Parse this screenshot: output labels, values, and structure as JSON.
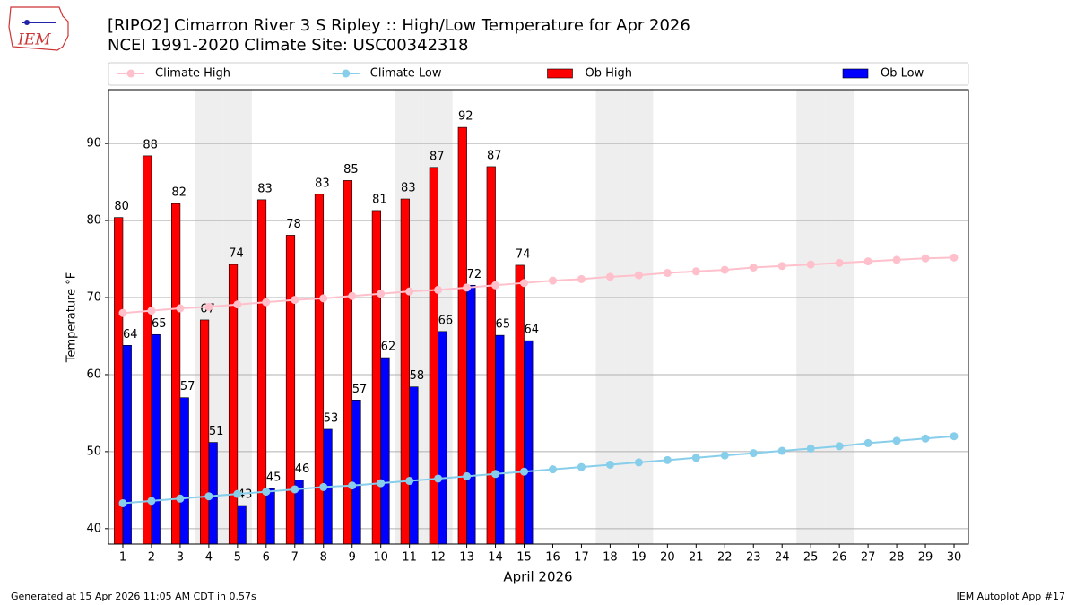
{
  "chart_data": {
    "type": "bar",
    "title": "[RIPO2] Cimarron River 3 S Ripley :: High/Low Temperature for Apr 2026",
    "subtitle": "NCEI 1991-2020 Climate Site: USC00342318",
    "x_label": "April 2026",
    "y_label": "Temperature °F",
    "logo_text": "IEM",
    "footer_left": "Generated at 15 Apr 2026 11:05 AM CDT in 0.57s",
    "footer_right": "IEM Autoplot App #17",
    "categories": [
      "1",
      "2",
      "3",
      "4",
      "5",
      "6",
      "7",
      "8",
      "9",
      "10",
      "11",
      "12",
      "13",
      "14",
      "15",
      "16",
      "17",
      "18",
      "19",
      "20",
      "21",
      "22",
      "23",
      "24",
      "25",
      "26",
      "27",
      "28",
      "29",
      "30"
    ],
    "shaded_categories": [
      "4",
      "5",
      "11",
      "12",
      "18",
      "19",
      "25",
      "26"
    ],
    "series": [
      {
        "name": "Climate High",
        "kind": "line",
        "color": "#ffc0cb",
        "values": [
          68.0,
          68.3,
          68.6,
          68.8,
          69.1,
          69.4,
          69.7,
          69.9,
          70.2,
          70.5,
          70.8,
          71.0,
          71.3,
          71.6,
          71.9,
          72.2,
          72.4,
          72.7,
          72.9,
          73.2,
          73.4,
          73.6,
          73.9,
          74.1,
          74.3,
          74.5,
          74.7,
          74.9,
          75.1,
          75.2
        ]
      },
      {
        "name": "Climate Low",
        "kind": "line",
        "color": "#87ceeb",
        "values": [
          43.3,
          43.6,
          43.9,
          44.2,
          44.5,
          44.8,
          45.1,
          45.4,
          45.6,
          45.9,
          46.2,
          46.5,
          46.8,
          47.1,
          47.4,
          47.7,
          48.0,
          48.3,
          48.6,
          48.9,
          49.2,
          49.5,
          49.8,
          50.1,
          50.4,
          50.7,
          51.1,
          51.4,
          51.7,
          52.0
        ]
      },
      {
        "name": "Ob High",
        "kind": "bar",
        "color": "#ff0000",
        "values": [
          80.4,
          88.4,
          82.2,
          67.1,
          74.3,
          82.7,
          78.1,
          83.4,
          85.2,
          81.3,
          82.8,
          86.9,
          92.1,
          87.0,
          74.2,
          null,
          null,
          null,
          null,
          null,
          null,
          null,
          null,
          null,
          null,
          null,
          null,
          null,
          null,
          null
        ],
        "value_labels": [
          "80",
          "88",
          "82",
          "67",
          "74",
          "83",
          "78",
          "83",
          "85",
          "81",
          "83",
          "87",
          "92",
          "87",
          "74",
          null,
          null,
          null,
          null,
          null,
          null,
          null,
          null,
          null,
          null,
          null,
          null,
          null,
          null,
          null
        ]
      },
      {
        "name": "Ob Low",
        "kind": "bar",
        "color": "#0000ff",
        "values": [
          63.8,
          65.2,
          57.0,
          51.2,
          43.0,
          45.2,
          46.3,
          52.9,
          56.7,
          62.2,
          58.4,
          65.6,
          71.6,
          65.1,
          64.4,
          null,
          null,
          null,
          null,
          null,
          null,
          null,
          null,
          null,
          null,
          null,
          null,
          null,
          null,
          null
        ],
        "value_labels": [
          "64",
          "65",
          "57",
          "51",
          "43",
          "45",
          "46",
          "53",
          "57",
          "62",
          "58",
          "66",
          "72",
          "65",
          "64",
          null,
          null,
          null,
          null,
          null,
          null,
          null,
          null,
          null,
          null,
          null,
          null,
          null,
          null,
          null
        ]
      }
    ],
    "ylim": [
      38,
      97
    ],
    "yticks": [
      40,
      50,
      60,
      70,
      80,
      90
    ],
    "grid": true,
    "legend": "top"
  }
}
